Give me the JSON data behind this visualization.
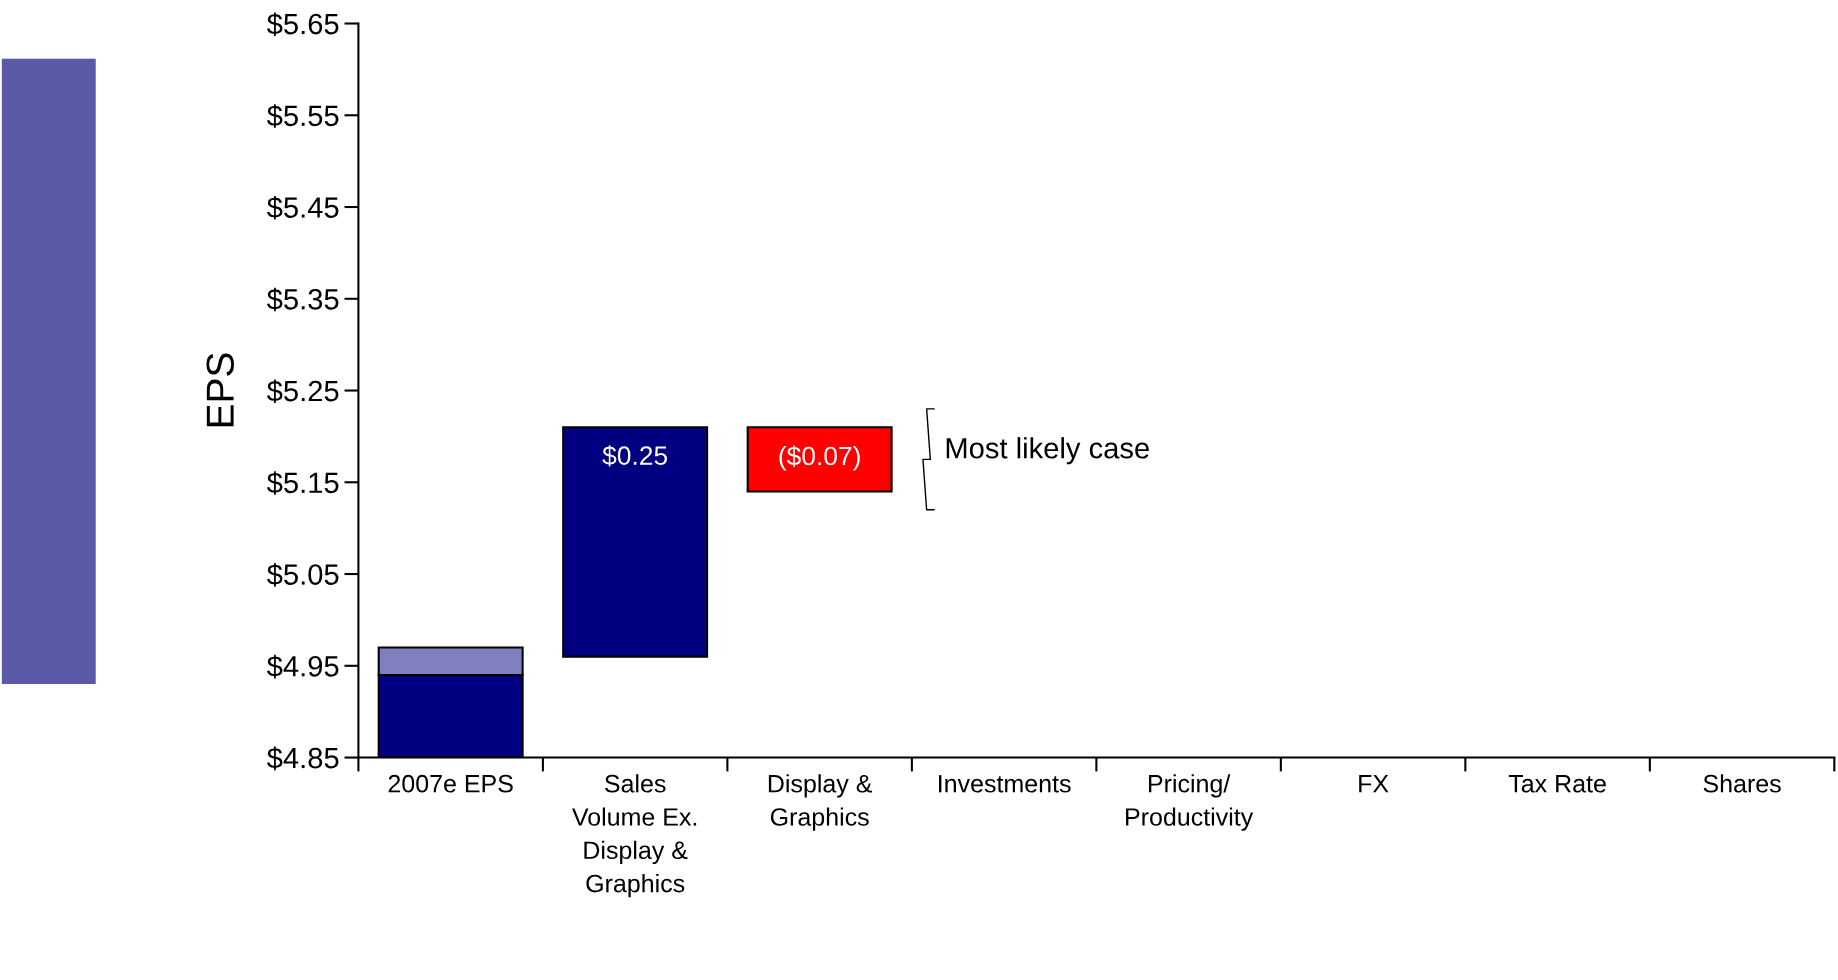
{
  "chart_data": {
    "type": "bar",
    "ylabel": "EPS",
    "categories": [
      "2007e EPS",
      "Sales\nVolume Ex.\nDisplay &\nGraphics",
      "Display &\nGraphics",
      "Investments",
      "Pricing/\nProductivity",
      "FX",
      "Tax Rate",
      "Shares"
    ],
    "series": [
      {
        "color": "#000080",
        "values": [
          0.09,
          0.25,
          null,
          null,
          null,
          null,
          null,
          null
        ],
        "base": [
          4.85,
          4.96,
          null,
          null,
          null,
          null,
          null,
          null
        ],
        "value_labels": [
          null,
          "$0.25",
          null,
          null,
          null,
          null,
          null,
          null
        ]
      },
      {
        "color": "#8080c0",
        "values": [
          0.03,
          null,
          null,
          null,
          null,
          null,
          null,
          null
        ],
        "base": [
          4.94,
          null,
          null,
          null,
          null,
          null,
          null,
          null
        ]
      },
      {
        "color": "#ff0000",
        "values": [
          null,
          null,
          -0.07,
          null,
          null,
          null,
          null,
          null
        ],
        "base": [
          null,
          null,
          5.21,
          null,
          null,
          null,
          null,
          null
        ],
        "value_labels": [
          null,
          null,
          "($0.07)",
          null,
          null,
          null,
          null,
          null
        ]
      }
    ],
    "ylim": [
      4.85,
      5.65
    ],
    "yticks": [
      {
        "value": 4.85,
        "label": "$4.85"
      },
      {
        "value": 4.95,
        "label": "$4.95"
      },
      {
        "value": 5.05,
        "label": "$5.05"
      },
      {
        "value": 5.15,
        "label": "$5.15"
      },
      {
        "value": 5.25,
        "label": "$5.25"
      },
      {
        "value": 5.35,
        "label": "$5.35"
      },
      {
        "value": 5.45,
        "label": "$5.45"
      },
      {
        "value": 5.55,
        "label": "$5.55"
      },
      {
        "value": 5.65,
        "label": "$5.65"
      }
    ],
    "annotations": [
      "Most likely case"
    ],
    "grid": false,
    "legend": false
  }
}
